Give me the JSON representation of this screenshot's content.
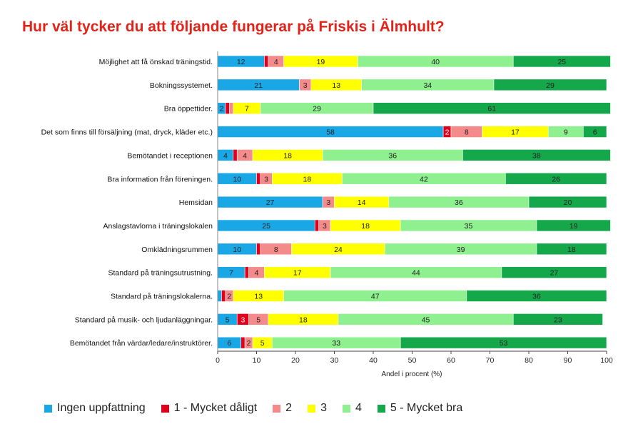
{
  "chart_data": {
    "type": "bar",
    "orientation": "horizontal",
    "stacked": true,
    "title": "Hur väl tycker du att följande fungerar på Friskis i Älmhult?",
    "xlabel": "Andel i procent (%)",
    "ylabel": "",
    "xlim": [
      0,
      100
    ],
    "xticks": [
      "0",
      "10",
      "20",
      "30",
      "40",
      "50",
      "60",
      "70",
      "80",
      "90",
      "100"
    ],
    "grid": false,
    "legend_position": "bottom",
    "categories": [
      "Möjlighet att få önskad träningstid.",
      "Bokningssystemet.",
      "Bra öppettider.",
      "Det som finns till försäljning (mat, dryck, kläder etc.)",
      "Bemötandet i receptionen",
      "Bra information från föreningen.",
      "Hemsidan",
      "Anslagstavlorna i träningslokalen",
      "Omklädningsrummen",
      "Standard på träningsutrustning.",
      "Standard på träningslokalerna.",
      "Standard på musik- och ljudanläggningar.",
      "Bemötandet från värdar/ledare/instruktörer."
    ],
    "series": [
      {
        "name": "Ingen uppfattning",
        "color": "#1aa7e6",
        "values": [
          12,
          21,
          2,
          58,
          4,
          10,
          27,
          25,
          10,
          7,
          1,
          5,
          6
        ],
        "labels": [
          "12",
          "21",
          "2",
          "58",
          "4",
          "10",
          "27",
          "25",
          "10",
          "7",
          "",
          "5",
          "6"
        ]
      },
      {
        "name": "1 - Mycket dåligt",
        "color": "#e0001b",
        "values": [
          1,
          0,
          1,
          2,
          1,
          1,
          0,
          1,
          1,
          1,
          1,
          3,
          1
        ],
        "labels": [
          "",
          "",
          "",
          "2",
          "",
          "",
          "",
          "",
          "",
          "",
          "",
          "3",
          ""
        ]
      },
      {
        "name": "2",
        "color": "#f58a8a",
        "values": [
          4,
          3,
          1,
          8,
          4,
          3,
          3,
          3,
          8,
          4,
          2,
          5,
          2
        ],
        "labels": [
          "4",
          "3",
          "",
          "8",
          "4",
          "3",
          "3",
          "3",
          "8",
          "4",
          "2",
          "5",
          "2"
        ]
      },
      {
        "name": "3",
        "color": "#ffff00",
        "values": [
          19,
          13,
          7,
          17,
          18,
          18,
          14,
          18,
          24,
          17,
          13,
          18,
          5
        ],
        "labels": [
          "19",
          "13",
          "7",
          "17",
          "18",
          "18",
          "14",
          "18",
          "24",
          "17",
          "13",
          "18",
          "5"
        ]
      },
      {
        "name": "4",
        "color": "#8ef08e",
        "values": [
          40,
          34,
          29,
          9,
          36,
          42,
          36,
          35,
          39,
          44,
          47,
          45,
          33
        ],
        "labels": [
          "40",
          "34",
          "29",
          "9",
          "36",
          "42",
          "36",
          "35",
          "39",
          "44",
          "47",
          "45",
          "33"
        ]
      },
      {
        "name": "5 - Mycket bra",
        "color": "#15a84a",
        "values": [
          25,
          29,
          61,
          6,
          38,
          26,
          20,
          19,
          18,
          27,
          36,
          23,
          53
        ],
        "labels": [
          "25",
          "29",
          "61",
          "6",
          "38",
          "26",
          "20",
          "19",
          "18",
          "27",
          "36",
          "23",
          "53"
        ]
      }
    ]
  }
}
